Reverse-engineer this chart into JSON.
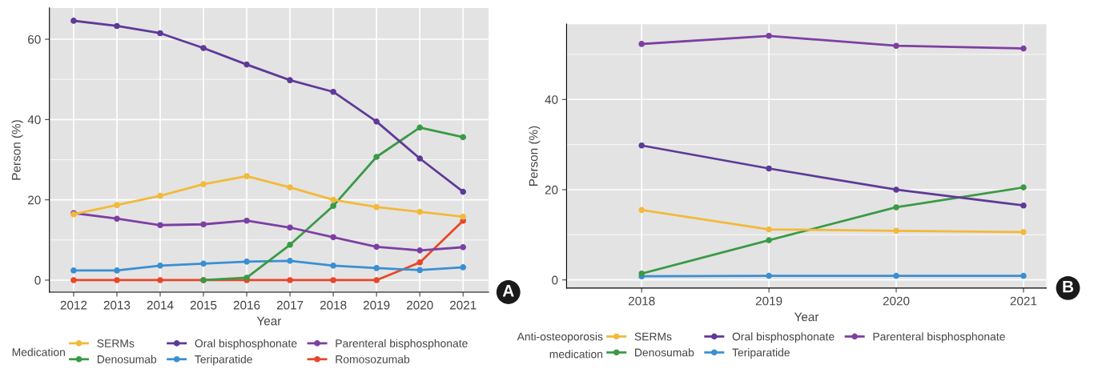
{
  "chart_data": [
    {
      "type": "line",
      "xlabel": "Year",
      "ylabel": "Person (%)",
      "legend_title": "Medication",
      "x": [
        2012,
        2013,
        2014,
        2015,
        2016,
        2017,
        2018,
        2019,
        2020,
        2021
      ],
      "xlim": [
        2011.44,
        2021.59
      ],
      "xticks": [
        2012,
        2013,
        2014,
        2015,
        2016,
        2017,
        2018,
        2019,
        2020,
        2021
      ],
      "ylim": [
        -3,
        67.8
      ],
      "yticks": [
        0,
        20,
        40,
        60
      ],
      "grid": true,
      "legend": "bottom",
      "marker": "circle",
      "line_style": "solid",
      "annotations": [
        "A"
      ],
      "series": [
        {
          "name": "SERMs",
          "color": "#f2b93b",
          "values": [
            16.4,
            18.7,
            21.0,
            23.9,
            25.9,
            23.1,
            20.0,
            18.2,
            17.0,
            15.8
          ]
        },
        {
          "name": "Oral bisphosphonate",
          "color": "#5e3a98",
          "values": [
            64.6,
            63.3,
            61.5,
            57.8,
            53.7,
            49.8,
            46.9,
            39.5,
            30.3,
            22.0
          ]
        },
        {
          "name": "Parenteral bisphosphonate",
          "color": "#7d3fa3",
          "values": [
            16.7,
            15.3,
            13.7,
            13.9,
            14.8,
            13.1,
            10.7,
            8.3,
            7.4,
            8.2
          ]
        },
        {
          "name": "Denosumab",
          "color": "#3a9a45",
          "values": [
            null,
            null,
            null,
            0,
            0.6,
            8.8,
            18.5,
            30.7,
            38.0,
            35.6
          ]
        },
        {
          "name": "Teriparatide",
          "color": "#3a8fd2",
          "values": [
            2.4,
            2.4,
            3.6,
            4.1,
            4.6,
            4.8,
            3.6,
            3.0,
            2.5,
            3.2
          ]
        },
        {
          "name": "Romosozumab",
          "color": "#e8472b",
          "values": [
            0,
            0,
            0,
            0,
            0,
            0,
            0,
            0,
            4.4,
            14.8
          ]
        }
      ]
    },
    {
      "type": "line",
      "xlabel": "Year",
      "ylabel": "Person (%)",
      "legend_title": "Anti-osteoporosis medication",
      "x": [
        2018,
        2019,
        2020,
        2021
      ],
      "xlim": [
        2017.41,
        2021.18
      ],
      "xticks": [
        2018,
        2019,
        2020,
        2021
      ],
      "ylim": [
        -1.8,
        56.7
      ],
      "yticks": [
        0,
        20,
        40
      ],
      "grid": true,
      "legend": "bottom",
      "marker": "circle",
      "line_style": "solid",
      "annotations": [
        "B"
      ],
      "series": [
        {
          "name": "SERMs",
          "color": "#f2b93b",
          "values": [
            15.5,
            11.2,
            10.9,
            10.6
          ]
        },
        {
          "name": "Oral bisphosphonate",
          "color": "#5e3a98",
          "values": [
            29.8,
            24.7,
            20.0,
            16.5
          ]
        },
        {
          "name": "Parenteral bisphosphonate",
          "color": "#7d3fa3",
          "values": [
            52.3,
            54.1,
            51.9,
            51.3
          ]
        },
        {
          "name": "Denosumab",
          "color": "#3a9a45",
          "values": [
            1.4,
            8.8,
            16.1,
            20.5
          ]
        },
        {
          "name": "Teriparatide",
          "color": "#3a8fd2",
          "values": [
            0.8,
            0.9,
            0.9,
            0.9
          ]
        }
      ]
    }
  ]
}
